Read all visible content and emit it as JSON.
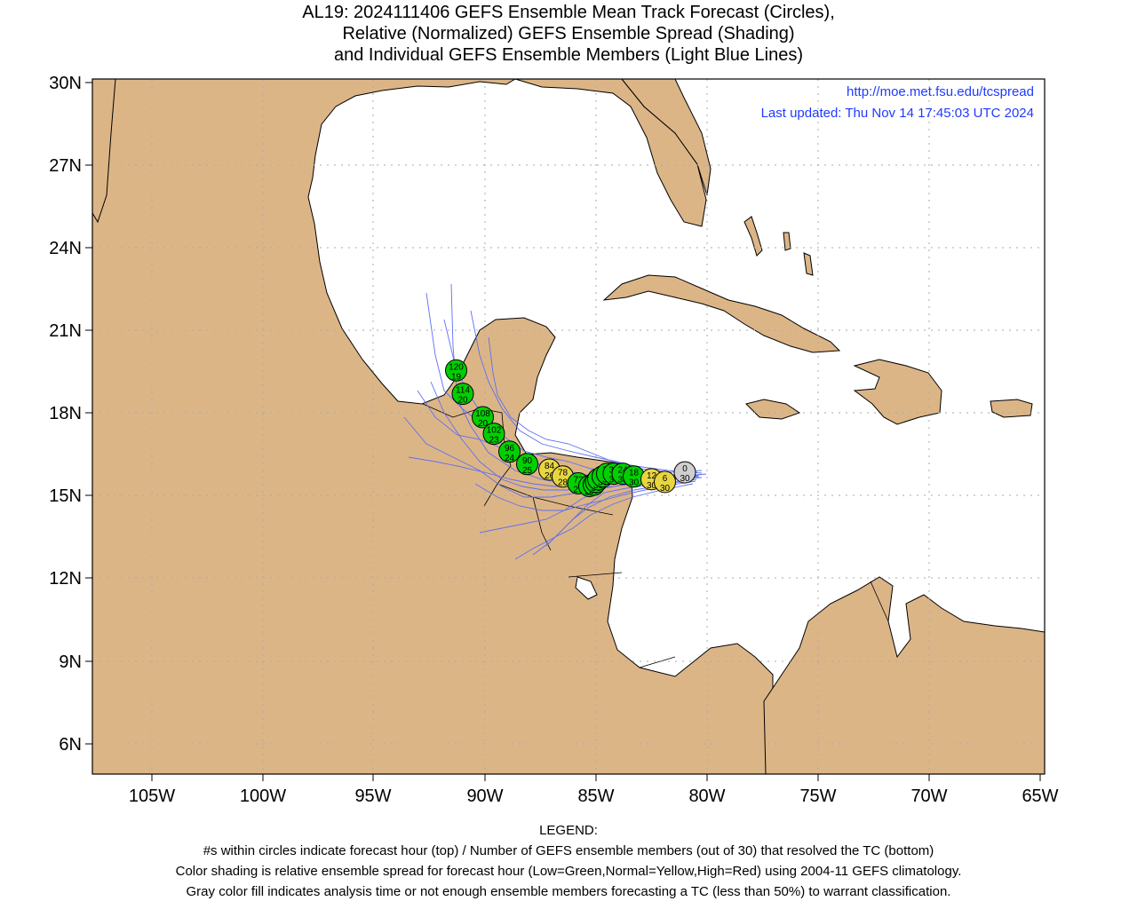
{
  "title_lines": [
    "AL19: 2024111406 GEFS Ensemble Mean Track Forecast (Circles),",
    "Relative (Normalized) GEFS Ensemble Spread (Shading)",
    "and Individual GEFS Ensemble Members (Light Blue Lines)"
  ],
  "info": {
    "url": "http://moe.met.fsu.edu/tcspread",
    "updated": "Last updated: Thu Nov 14 17:45:03 UTC 2024"
  },
  "axes": {
    "x_labels": [
      "105W",
      "100W",
      "95W",
      "90W",
      "85W",
      "80W",
      "75W",
      "70W",
      "65W"
    ],
    "y_labels": [
      "30N",
      "27N",
      "24N",
      "21N",
      "18N",
      "15N",
      "12N",
      "9N",
      "6N"
    ]
  },
  "colors": {
    "land": "#dcb587",
    "ocean": "#ffffff",
    "member_track": "#5f6ff0",
    "low_spread": "#00d000",
    "normal_spread": "#e8d640",
    "analysis": "#cfcfcf",
    "info_text": "#1f3bff"
  },
  "chart_data": {
    "type": "scatter",
    "x_axis": "longitude",
    "y_axis": "latitude",
    "xlim": [
      -107.6,
      -64.6
    ],
    "ylim": [
      4.9,
      30.1
    ],
    "mean_track": [
      {
        "hour": "0",
        "members": "30",
        "lon": -81.0,
        "lat": 15.85,
        "spread": "analysis"
      },
      {
        "hour": "6",
        "members": "30",
        "lon": -81.9,
        "lat": 15.5,
        "spread": "normal"
      },
      {
        "hour": "12",
        "members": "30",
        "lon": -82.5,
        "lat": 15.6,
        "spread": "normal"
      },
      {
        "hour": "18",
        "members": "30",
        "lon": -83.3,
        "lat": 15.7,
        "spread": "low"
      },
      {
        "hour": "24",
        "members": "30",
        "lon": -83.8,
        "lat": 15.8,
        "spread": "low"
      },
      {
        "hour": "30",
        "members": "30",
        "lon": -84.2,
        "lat": 15.8,
        "spread": "low"
      },
      {
        "hour": "36",
        "members": "30",
        "lon": -84.5,
        "lat": 15.8,
        "spread": "low"
      },
      {
        "hour": "42",
        "members": "30",
        "lon": -84.7,
        "lat": 15.7,
        "spread": "low"
      },
      {
        "hour": "48",
        "members": "30",
        "lon": -84.9,
        "lat": 15.6,
        "spread": "low"
      },
      {
        "hour": "54",
        "members": "30",
        "lon": -85.0,
        "lat": 15.5,
        "spread": "low"
      },
      {
        "hour": "60",
        "members": "29",
        "lon": -85.1,
        "lat": 15.4,
        "spread": "low"
      },
      {
        "hour": "66",
        "members": "29",
        "lon": -85.3,
        "lat": 15.35,
        "spread": "low"
      },
      {
        "hour": "72",
        "members": "29",
        "lon": -85.8,
        "lat": 15.45,
        "spread": "low"
      },
      {
        "hour": "78",
        "members": "28",
        "lon": -86.5,
        "lat": 15.7,
        "spread": "normal"
      },
      {
        "hour": "84",
        "members": "26",
        "lon": -87.1,
        "lat": 15.95,
        "spread": "normal"
      },
      {
        "hour": "90",
        "members": "25",
        "lon": -88.1,
        "lat": 16.15,
        "spread": "low"
      },
      {
        "hour": "96",
        "members": "24",
        "lon": -88.9,
        "lat": 16.6,
        "spread": "low"
      },
      {
        "hour": "102",
        "members": "23",
        "lon": -89.6,
        "lat": 17.25,
        "spread": "low"
      },
      {
        "hour": "108",
        "members": "20",
        "lon": -90.1,
        "lat": 17.85,
        "spread": "low"
      },
      {
        "hour": "114",
        "members": "20",
        "lon": -91.0,
        "lat": 18.7,
        "spread": "low"
      },
      {
        "hour": "120",
        "members": "19",
        "lon": -91.3,
        "lat": 19.55,
        "spread": "low"
      }
    ]
  },
  "legend_lines": [
    "LEGEND:",
    "#s within circles indicate forecast hour (top) / Number of GEFS ensemble members (out of 30) that resolved the TC (bottom)",
    "Color shading is relative ensemble spread for forecast hour (Low=Green,Normal=Yellow,High=Red) using 2004-11 GEFS climatology.",
    "Gray color fill indicates analysis time or not enough ensemble members forecasting a TC (less than 50%) to warrant classification."
  ]
}
